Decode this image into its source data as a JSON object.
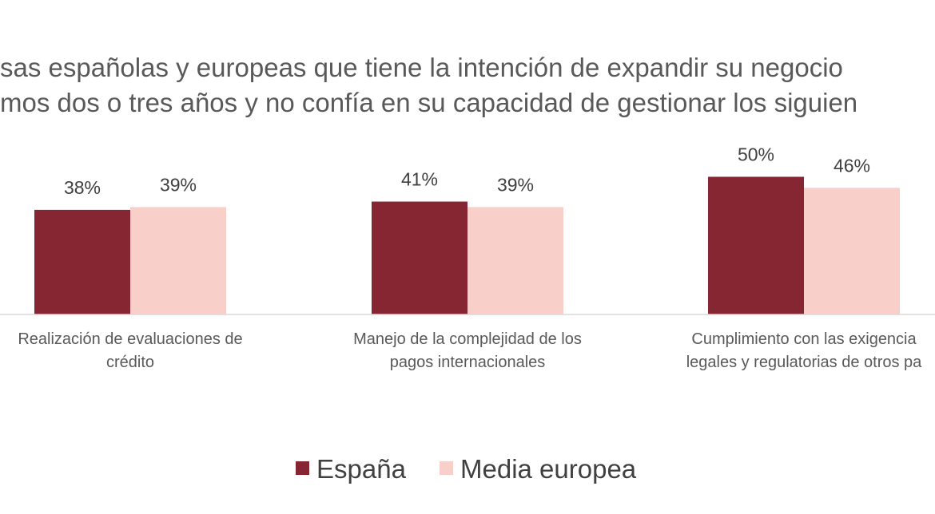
{
  "chart_data": {
    "type": "bar",
    "title_lines": [
      "sas españolas y europeas que tiene la intención de expandir su negocio",
      "mos dos o tres años y no confía en su capacidad de gestionar los siguien"
    ],
    "categories": [
      [
        "Realización de evaluaciones de",
        "crédito"
      ],
      [
        "Manejo de la complejidad de los",
        "pagos internacionales"
      ],
      [
        "Cumplimiento con las exigencia",
        "legales y regulatorias de otros pa"
      ]
    ],
    "series": [
      {
        "name": "España",
        "values": [
          38,
          41,
          50
        ],
        "labels": [
          "38%",
          "41%",
          "50%"
        ],
        "color": "#862633"
      },
      {
        "name": "Media europea",
        "values": [
          39,
          39,
          46
        ],
        "labels": [
          "39%",
          "39%",
          "46%"
        ],
        "color": "#F8CFC9"
      }
    ],
    "ylim": [
      0,
      100
    ],
    "grid": false,
    "legend_position": "bottom",
    "axis_color": "#D9D9D9"
  }
}
